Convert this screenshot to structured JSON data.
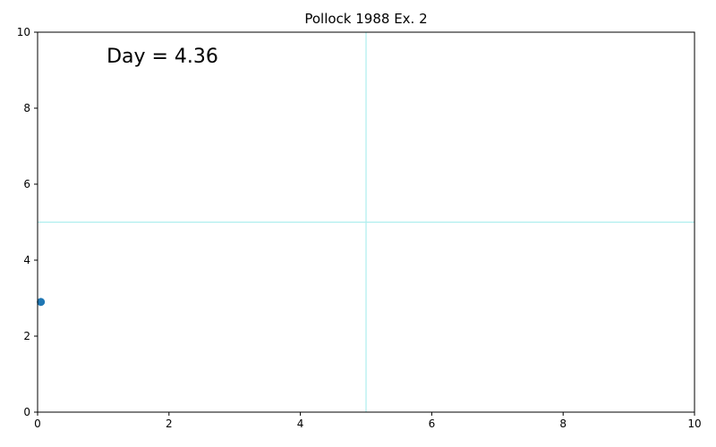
{
  "chart_data": {
    "type": "scatter",
    "title": "Pollock 1988 Ex. 2",
    "xlabel": "",
    "ylabel": "",
    "xlim": [
      0,
      10
    ],
    "ylim": [
      0,
      10
    ],
    "x_ticks": [
      0,
      2,
      4,
      6,
      8,
      10
    ],
    "y_ticks": [
      0,
      2,
      4,
      6,
      8,
      10
    ],
    "x_tick_labels": [
      "0",
      "2",
      "4",
      "6",
      "8",
      "10"
    ],
    "y_tick_labels": [
      "0",
      "2",
      "4",
      "6",
      "8",
      "10"
    ],
    "grid": false,
    "reference_lines": {
      "vertical_x": 5,
      "horizontal_y": 5,
      "color": "#aeeeee"
    },
    "points": [
      {
        "x": 0.05,
        "y": 2.9
      }
    ],
    "point_color": "#1f77b4",
    "annotation": {
      "text": "Day = 4.36",
      "x": 1.05,
      "y": 9.2
    }
  }
}
